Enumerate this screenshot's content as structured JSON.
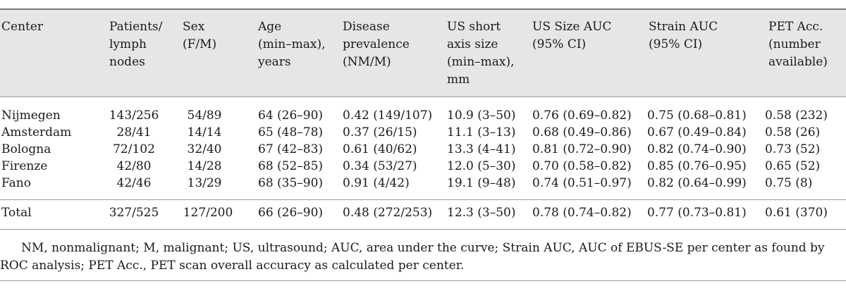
{
  "table": {
    "headers": [
      "Center",
      "Patients/\nlymph\nnodes",
      "Sex\n(F/M)",
      "Age\n(min–max),\nyears",
      "Disease\nprevalence\n(NM/M)",
      "US short\naxis size\n(min–max),\nmm",
      "US Size AUC\n(95% CI)",
      "Strain AUC\n(95% CI)",
      "PET Acc.\n(number\navailable)"
    ],
    "rows": [
      [
        "Nijmegen",
        "143/256",
        "54/89",
        "64 (26–90)",
        "0.42 (149/107)",
        "10.9 (3–50)",
        "0.76 (0.69–0.82)",
        "0.75 (0.68–0.81)",
        "0.58 (232)"
      ],
      [
        "Amsterdam",
        "28/41",
        "14/14",
        "65 (48–78)",
        "0.37 (26/15)",
        "11.1 (3–13)",
        "0.68 (0.49–0.86)",
        "0.67 (0.49–0.84)",
        "0.58 (26)"
      ],
      [
        "Bologna",
        "72/102",
        "32/40",
        "67 (42–83)",
        "0.61 (40/62)",
        "13.3 (4–41)",
        "0.81 (0.72–0.90)",
        "0.82 (0.74–0.90)",
        "0.73 (52)"
      ],
      [
        "Firenze",
        "42/80",
        "14/28",
        "68 (52–85)",
        "0.34 (53/27)",
        "12.0 (5–30)",
        "0.70 (0.58–0.82)",
        "0.85 (0.76–0.95)",
        "0.65 (52)"
      ],
      [
        "Fano",
        "42/46",
        "13/29",
        "68 (35–90)",
        "0.91 (4/42)",
        "19.1 (9–48)",
        "0.74 (0.51–0.97)",
        "0.82 (0.64–0.99)",
        "0.75 (8)"
      ]
    ],
    "total": [
      "Total",
      "327/525",
      "127/200",
      "66 (26–90)",
      "0.48 (272/253)",
      "12.3 (3–50)",
      "0.78 (0.74–0.82)",
      "0.77 (0.73–0.81)",
      "0.61 (370)"
    ]
  },
  "footnote": "NM, nonmalignant; M, malignant; US, ultrasound; AUC, area under the curve; Strain AUC, AUC of EBUS-SE per center as found by ROC analysis; PET Acc., PET scan overall accuracy as calculated per center."
}
